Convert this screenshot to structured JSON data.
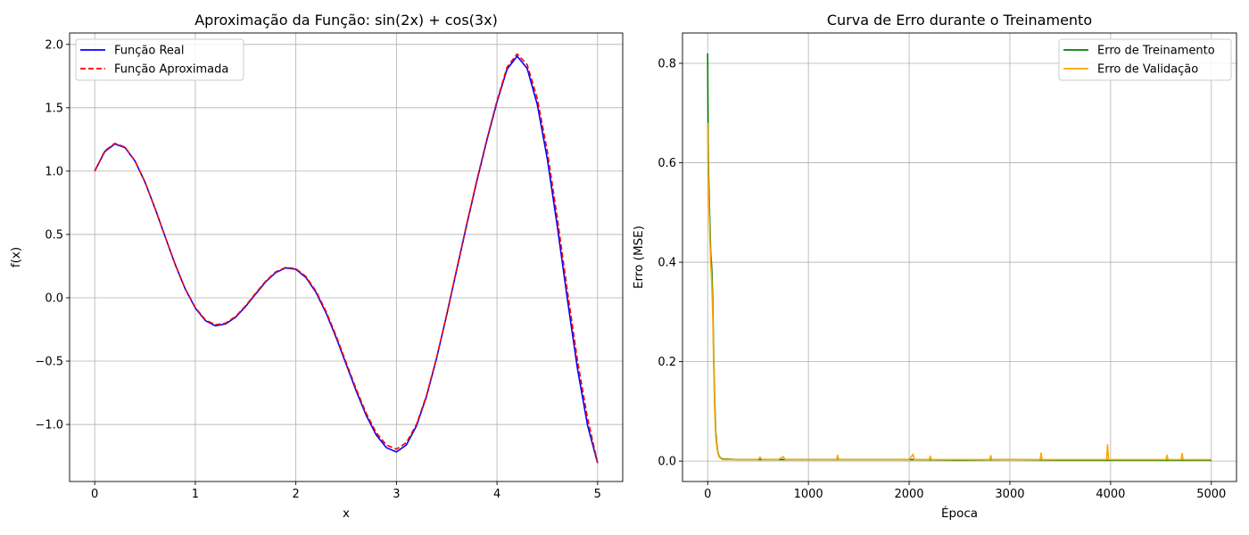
{
  "chart_data": [
    {
      "type": "line",
      "title": "Aproximação da Função: sin(2x) + cos(3x)",
      "xlabel": "x",
      "ylabel": "f(x)",
      "xlim": [
        -0.25,
        5.25
      ],
      "ylim": [
        -1.45,
        2.09
      ],
      "xticks": [
        0,
        1,
        2,
        3,
        4,
        5
      ],
      "yticks": [
        -1.0,
        -0.5,
        0.0,
        0.5,
        1.0,
        1.5,
        2.0
      ],
      "xtick_labels": [
        "0",
        "1",
        "2",
        "3",
        "4",
        "5"
      ],
      "ytick_labels": [
        "−1.0",
        "−0.5",
        "0.0",
        "0.5",
        "1.0",
        "1.5",
        "2.0"
      ],
      "grid": true,
      "legend_position": "top-left",
      "series": [
        {
          "name": "Função Real",
          "color": "#0000ff",
          "style": "solid",
          "x": [
            0,
            0.1,
            0.2,
            0.3,
            0.4,
            0.5,
            0.6,
            0.7,
            0.8,
            0.9,
            1.0,
            1.1,
            1.2,
            1.3,
            1.4,
            1.5,
            1.6,
            1.7,
            1.8,
            1.9,
            2.0,
            2.1,
            2.2,
            2.3,
            2.4,
            2.5,
            2.6,
            2.7,
            2.8,
            2.9,
            3.0,
            3.1,
            3.2,
            3.3,
            3.4,
            3.5,
            3.6,
            3.7,
            3.8,
            3.9,
            4.0,
            4.1,
            4.2,
            4.3,
            4.4,
            4.5,
            4.6,
            4.7,
            4.8,
            4.9,
            5.0
          ],
          "y": [
            1.0,
            1.154,
            1.214,
            1.186,
            1.08,
            0.912,
            0.705,
            0.482,
            0.263,
            0.069,
            -0.081,
            -0.18,
            -0.221,
            -0.207,
            -0.154,
            -0.069,
            0.03,
            0.126,
            0.199,
            0.236,
            0.225,
            0.16,
            0.043,
            -0.119,
            -0.313,
            -0.524,
            -0.735,
            -0.929,
            -1.084,
            -1.183,
            -1.217,
            -1.16,
            -1.01,
            -0.776,
            -0.476,
            -0.135,
            0.224,
            0.58,
            0.923,
            1.246,
            1.545,
            1.804,
            1.907,
            1.81,
            1.528,
            1.098,
            0.562,
            -0.012,
            -0.559,
            -1.006,
            -1.304
          ]
        },
        {
          "name": "Função Aproximada",
          "color": "#ff0000",
          "style": "dashed",
          "x": [
            0,
            0.1,
            0.2,
            0.3,
            0.4,
            0.5,
            0.6,
            0.7,
            0.8,
            0.9,
            1.0,
            1.1,
            1.2,
            1.3,
            1.4,
            1.5,
            1.6,
            1.7,
            1.8,
            1.9,
            2.0,
            2.1,
            2.2,
            2.3,
            2.4,
            2.5,
            2.6,
            2.7,
            2.8,
            2.9,
            3.0,
            3.1,
            3.2,
            3.3,
            3.4,
            3.5,
            3.6,
            3.7,
            3.8,
            3.9,
            4.0,
            4.1,
            4.2,
            4.3,
            4.4,
            4.5,
            4.6,
            4.7,
            4.8,
            4.9,
            5.0
          ],
          "y": [
            1.0,
            1.16,
            1.219,
            1.19,
            1.082,
            0.914,
            0.706,
            0.484,
            0.265,
            0.072,
            -0.076,
            -0.174,
            -0.213,
            -0.2,
            -0.148,
            -0.063,
            0.036,
            0.132,
            0.205,
            0.24,
            0.23,
            0.168,
            0.053,
            -0.107,
            -0.3,
            -0.51,
            -0.72,
            -0.912,
            -1.066,
            -1.162,
            -1.195,
            -1.142,
            -0.998,
            -0.768,
            -0.47,
            -0.13,
            0.23,
            0.587,
            0.93,
            1.255,
            1.555,
            1.82,
            1.925,
            1.84,
            1.575,
            1.16,
            0.628,
            0.054,
            -0.492,
            -0.95,
            -1.3
          ]
        }
      ]
    },
    {
      "type": "line",
      "title": "Curva de Erro durante o Treinamento",
      "xlabel": "Época",
      "ylabel": "Erro (MSE)",
      "xlim": [
        -250,
        5250
      ],
      "ylim": [
        -0.041,
        0.861
      ],
      "xticks": [
        0,
        1000,
        2000,
        3000,
        4000,
        5000
      ],
      "yticks": [
        0.0,
        0.2,
        0.4,
        0.6,
        0.8
      ],
      "xtick_labels": [
        "0",
        "1000",
        "2000",
        "3000",
        "4000",
        "5000"
      ],
      "ytick_labels": [
        "0.0",
        "0.2",
        "0.4",
        "0.6",
        "0.8"
      ],
      "grid": true,
      "legend_position": "top-right",
      "series": [
        {
          "name": "Erro de Treinamento",
          "color": "#008000",
          "style": "solid",
          "x": [
            0,
            5,
            10,
            20,
            30,
            40,
            50,
            60,
            70,
            80,
            90,
            100,
            110,
            120,
            130,
            150,
            200,
            300,
            500,
            700,
            1000,
            1500,
            2000,
            2500,
            3000,
            3500,
            4000,
            4500,
            5000
          ],
          "y": [
            0.82,
            0.64,
            0.57,
            0.49,
            0.42,
            0.39,
            0.33,
            0.21,
            0.12,
            0.06,
            0.035,
            0.02,
            0.012,
            0.008,
            0.006,
            0.004,
            0.004,
            0.003,
            0.003,
            0.003,
            0.003,
            0.003,
            0.003,
            0.002,
            0.003,
            0.002,
            0.002,
            0.002,
            0.002
          ]
        },
        {
          "name": "Erro de Validação",
          "color": "#ffa500",
          "style": "solid",
          "x": [
            0,
            5,
            10,
            20,
            30,
            40,
            50,
            60,
            70,
            80,
            90,
            100,
            110,
            120,
            130,
            150,
            200,
            300,
            500,
            520,
            540,
            700,
            750,
            770,
            1000,
            1280,
            1290,
            1300,
            1600,
            2000,
            2040,
            2050,
            2060,
            2200,
            2210,
            2220,
            2500,
            2800,
            2810,
            2820,
            3200,
            3300,
            3310,
            3320,
            3600,
            3960,
            3970,
            3980,
            4200,
            4550,
            4560,
            4570,
            4700,
            4710,
            4720,
            5000
          ],
          "y": [
            0.68,
            0.58,
            0.53,
            0.46,
            0.4,
            0.36,
            0.3,
            0.19,
            0.1,
            0.05,
            0.03,
            0.018,
            0.01,
            0.007,
            0.005,
            0.003,
            0.003,
            0.003,
            0.003,
            0.008,
            0.003,
            0.003,
            0.009,
            0.003,
            0.003,
            0.003,
            0.012,
            0.003,
            0.003,
            0.003,
            0.014,
            0.003,
            0.003,
            0.003,
            0.01,
            0.003,
            0.003,
            0.003,
            0.011,
            0.003,
            0.003,
            0.003,
            0.016,
            0.003,
            0.003,
            0.003,
            0.033,
            0.003,
            0.003,
            0.003,
            0.012,
            0.003,
            0.003,
            0.015,
            0.003,
            0.003
          ]
        }
      ]
    }
  ]
}
